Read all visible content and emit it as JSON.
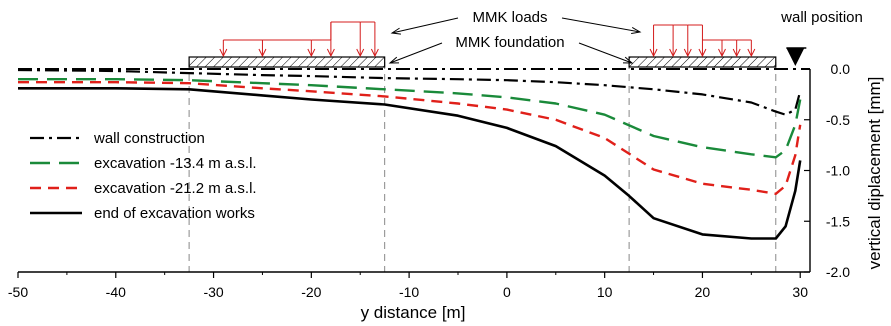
{
  "chart_data": {
    "type": "line",
    "xlabel": "y distance [m]",
    "ylabel": "vertical diplacement [mm]",
    "xlim": [
      -50,
      31
    ],
    "ylim": [
      -2.0,
      0.0
    ],
    "y_inverted": true,
    "y_axis_side": "right",
    "x_ticks": [
      -50,
      -40,
      -30,
      -20,
      -10,
      0,
      10,
      20,
      30
    ],
    "y_ticks": [
      0.0,
      -0.5,
      -1.0,
      -1.5,
      -2.0
    ],
    "x_tick_labels": [
      "-50",
      "-40",
      "-30",
      "-20",
      "-10",
      "0",
      "10",
      "20",
      "30"
    ],
    "y_tick_labels": [
      "0.0",
      "-0.5",
      "-1.0",
      "-1.5",
      "-2.0"
    ],
    "legend_position": "left",
    "series": [
      {
        "name": "wall construction",
        "color": "#000000",
        "dash": "dash-dot",
        "x": [
          -50,
          -40,
          -32.5,
          -25,
          -20,
          -12.5,
          -5,
          0,
          5,
          10,
          15,
          20,
          25,
          27.5,
          28.5,
          29.5,
          30
        ],
        "y": [
          -0.01,
          -0.02,
          -0.04,
          -0.06,
          -0.07,
          -0.09,
          -0.1,
          -0.11,
          -0.13,
          -0.16,
          -0.2,
          -0.25,
          -0.33,
          -0.42,
          -0.45,
          -0.4,
          -0.22
        ]
      },
      {
        "name": "excavation -13.4 m a.s.l.",
        "color": "#1a8a3a",
        "dash": "long-dash",
        "x": [
          -50,
          -40,
          -32.5,
          -25,
          -20,
          -12.5,
          -5,
          0,
          5,
          10,
          15,
          20,
          25,
          27.5,
          28.5,
          29.5,
          30
        ],
        "y": [
          -0.1,
          -0.1,
          -0.11,
          -0.14,
          -0.16,
          -0.2,
          -0.24,
          -0.28,
          -0.34,
          -0.45,
          -0.66,
          -0.77,
          -0.84,
          -0.87,
          -0.8,
          -0.55,
          -0.3
        ]
      },
      {
        "name": "excavation -21.2 m a.s.l.",
        "color": "#e0201a",
        "dash": "dash",
        "x": [
          -50,
          -40,
          -32.5,
          -25,
          -20,
          -12.5,
          -5,
          0,
          5,
          10,
          15,
          20,
          25,
          27.5,
          28.5,
          29.5,
          30
        ],
        "y": [
          -0.13,
          -0.13,
          -0.14,
          -0.19,
          -0.22,
          -0.27,
          -0.34,
          -0.4,
          -0.5,
          -0.68,
          -0.99,
          -1.13,
          -1.19,
          -1.23,
          -1.15,
          -0.85,
          -0.55
        ]
      },
      {
        "name": "end of excavation works",
        "color": "#000000",
        "dash": "solid",
        "x": [
          -50,
          -40,
          -32.5,
          -25,
          -20,
          -12.5,
          -5,
          0,
          5,
          10,
          12.5,
          15,
          20,
          25,
          27.5,
          28.5,
          29.5,
          30
        ],
        "y": [
          -0.19,
          -0.19,
          -0.2,
          -0.26,
          -0.3,
          -0.35,
          -0.46,
          -0.58,
          -0.76,
          -1.05,
          -1.25,
          -1.47,
          -1.63,
          -1.67,
          -1.67,
          -1.55,
          -1.2,
          -0.9
        ]
      }
    ],
    "reference_lines_x": [
      -32.5,
      -12.5,
      12.5,
      27.5
    ],
    "annotations": {
      "loads_label": "MMK loads",
      "foundation_label": "MMK foundation",
      "wall_label": "wall position"
    },
    "foundations": [
      {
        "x_start": -32.5,
        "x_end": -12.5,
        "load_x": [
          -29,
          -25,
          -20,
          -18,
          -15,
          -13.5
        ]
      },
      {
        "x_start": 12.5,
        "x_end": 27.5,
        "load_x": [
          15,
          17,
          18.5,
          20,
          22,
          23.5,
          25
        ]
      }
    ],
    "wall_x": 29.5
  }
}
